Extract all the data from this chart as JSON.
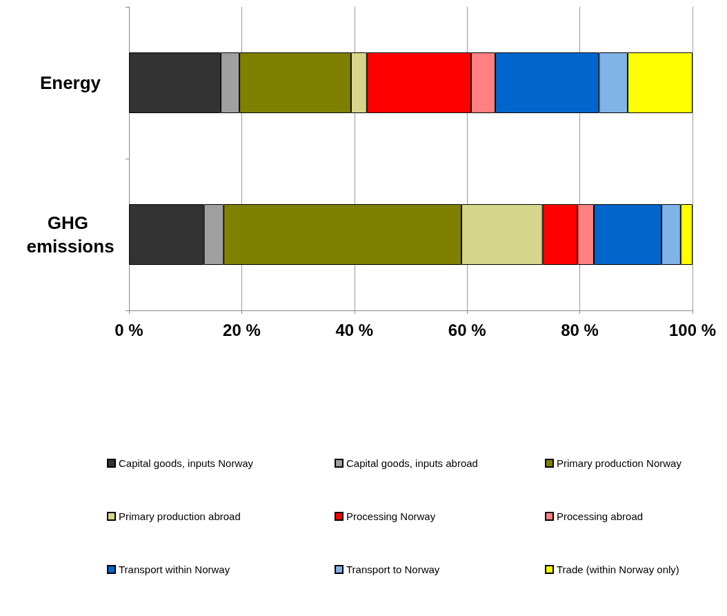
{
  "chart_data": {
    "type": "bar",
    "orientation": "horizontal",
    "stacked": true,
    "categories": [
      "Energy",
      "GHG emissions"
    ],
    "series": [
      {
        "name": "Capital goods, inputs Norway",
        "color": "#333333",
        "values": [
          16.3,
          13.3
        ]
      },
      {
        "name": "Capital goods, inputs abroad",
        "color": "#a0a0a0",
        "values": [
          3.3,
          3.5
        ]
      },
      {
        "name": "Primary production Norway",
        "color": "#808000",
        "values": [
          19.8,
          42.2
        ]
      },
      {
        "name": "Primary production abroad",
        "color": "#d6d68a",
        "values": [
          2.8,
          14.4
        ]
      },
      {
        "name": "Processing Norway",
        "color": "#ff0000",
        "values": [
          18.5,
          6.2
        ]
      },
      {
        "name": "Processing abroad",
        "color": "#ff8080",
        "values": [
          4.3,
          2.9
        ]
      },
      {
        "name": "Transport within Norway",
        "color": "#0066cc",
        "values": [
          18.4,
          12.0
        ]
      },
      {
        "name": "Transport to Norway",
        "color": "#80b3e6",
        "values": [
          5.1,
          3.4
        ]
      },
      {
        "name": "Trade (within Norway only)",
        "color": "#ffff00",
        "values": [
          11.5,
          2.1
        ]
      }
    ],
    "xlim": [
      0,
      100
    ],
    "xticks": [
      {
        "value": 0,
        "label": "0 %"
      },
      {
        "value": 20,
        "label": "20 %"
      },
      {
        "value": 40,
        "label": "40 %"
      },
      {
        "value": 60,
        "label": "60 %"
      },
      {
        "value": 80,
        "label": "80 %"
      },
      {
        "value": 100,
        "label": "100 %"
      }
    ],
    "grid": "x",
    "legend": "bottom"
  }
}
